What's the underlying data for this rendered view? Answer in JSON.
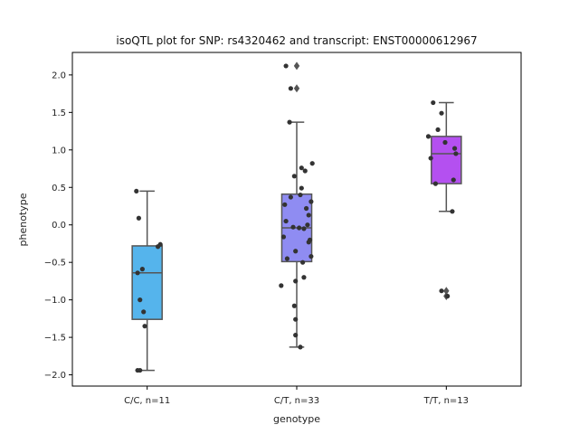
{
  "chart_data": {
    "type": "box",
    "title": "isoQTL plot for SNP: rs4320462 and transcript: ENST00000612967",
    "xlabel": "genotype",
    "ylabel": "phenotype",
    "ylim": [
      -2.15,
      2.3
    ],
    "yticks": [
      -2.0,
      -1.5,
      -1.0,
      -0.5,
      0.0,
      0.5,
      1.0,
      1.5,
      2.0
    ],
    "ytick_labels": [
      "−2.0",
      "−1.5",
      "−1.0",
      "−0.5",
      "0.0",
      "0.5",
      "1.0",
      "1.5",
      "2.0"
    ],
    "grid": false,
    "categories": [
      "C/C, n=11",
      "C/T, n=33",
      "T/T, n=13"
    ],
    "boxes": [
      {
        "category": "C/C, n=11",
        "color": "#55b4ec",
        "q1": -1.26,
        "median": -0.64,
        "q3": -0.28,
        "whisker_low": -1.94,
        "whisker_high": 0.45,
        "outliers": [],
        "points": [
          0.45,
          0.09,
          -0.26,
          -0.29,
          -0.59,
          -0.64,
          -1.0,
          -1.16,
          -1.35,
          -1.94,
          -1.94
        ],
        "jitter": [
          -0.09,
          -0.07,
          0.11,
          0.09,
          -0.04,
          -0.08,
          -0.06,
          -0.03,
          -0.02,
          -0.08,
          -0.06
        ]
      },
      {
        "category": "C/T, n=33",
        "color": "#8f8cf2",
        "q1": -0.49,
        "median": -0.04,
        "q3": 0.41,
        "whisker_low": -1.63,
        "whisker_high": 1.37,
        "outliers": [
          2.12,
          1.82
        ],
        "points": [
          2.12,
          1.82,
          1.37,
          0.82,
          0.76,
          0.72,
          0.65,
          0.49,
          0.4,
          0.37,
          0.31,
          0.27,
          0.22,
          0.13,
          0.05,
          0.0,
          -0.03,
          -0.04,
          -0.05,
          -0.16,
          -0.2,
          -0.23,
          -0.35,
          -0.42,
          -0.45,
          -0.5,
          -0.7,
          -0.75,
          -0.81,
          -1.08,
          -1.26,
          -1.47,
          -1.63
        ],
        "jitter": [
          -0.09,
          -0.05,
          -0.06,
          0.13,
          0.04,
          0.07,
          -0.02,
          0.04,
          0.03,
          -0.05,
          0.12,
          -0.1,
          0.08,
          0.1,
          -0.09,
          0.09,
          -0.03,
          0.02,
          0.06,
          -0.11,
          0.11,
          0.1,
          -0.01,
          0.12,
          -0.08,
          0.05,
          0.06,
          -0.01,
          -0.13,
          -0.02,
          -0.01,
          -0.01,
          0.03
        ]
      },
      {
        "category": "T/T, n=13",
        "color": "#b450f0",
        "q1": 0.55,
        "median": 0.95,
        "q3": 1.18,
        "whisker_low": 0.18,
        "whisker_high": 1.63,
        "outliers": [
          -0.88,
          -0.95
        ],
        "points": [
          1.63,
          1.49,
          1.27,
          1.18,
          1.1,
          1.02,
          0.95,
          0.89,
          0.6,
          0.55,
          0.18,
          -0.88,
          -0.95
        ],
        "jitter": [
          -0.11,
          -0.04,
          -0.07,
          -0.15,
          -0.01,
          0.07,
          0.08,
          -0.13,
          0.06,
          -0.09,
          0.05,
          -0.04,
          0.01
        ]
      }
    ]
  }
}
